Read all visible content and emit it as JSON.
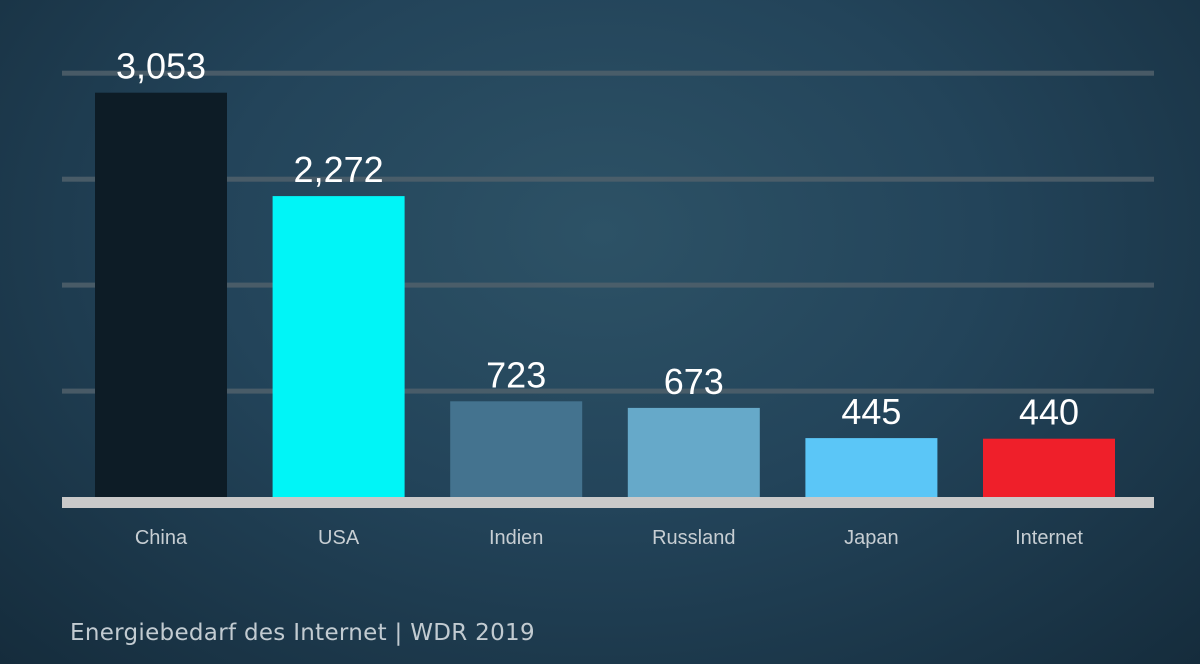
{
  "chart_data": {
    "type": "bar",
    "categories": [
      "China",
      "USA",
      "Indien",
      "Russland",
      "Japan",
      "Internet"
    ],
    "values": [
      3053,
      2272,
      723,
      673,
      445,
      440
    ],
    "value_labels": [
      "3,053",
      "2,272",
      "723",
      "673",
      "445",
      "440"
    ],
    "colors": [
      "#0d1c26",
      "#00f5f7",
      "#44738f",
      "#66a9c9",
      "#5bc6f7",
      "#ef1f2a"
    ],
    "ylim": [
      0,
      3300
    ],
    "grid": true,
    "gridline_count": 4,
    "legend": "none",
    "title": "",
    "xlabel": "",
    "ylabel": ""
  },
  "caption": "Energiebedarf des Internet | WDR 2019"
}
